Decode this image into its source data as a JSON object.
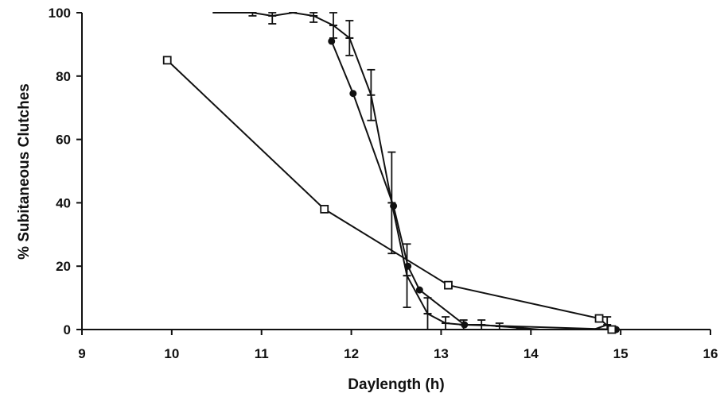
{
  "chart_data": {
    "type": "line",
    "title": "",
    "xlabel": "Daylength (h)",
    "ylabel": "% Subitaneous Clutches",
    "xlim": [
      9,
      16
    ],
    "ylim": [
      0,
      100
    ],
    "xticks": [
      9,
      10,
      11,
      12,
      13,
      14,
      15,
      16
    ],
    "yticks": [
      0,
      20,
      40,
      60,
      80,
      100
    ],
    "grid": false,
    "legend": "none",
    "series": [
      {
        "marker": "tick",
        "color": "#111111",
        "points": [
          {
            "x": 10.5,
            "y": 100
          },
          {
            "x": 10.9,
            "y": 100,
            "err": 1
          },
          {
            "x": 11.12,
            "y": 99,
            "err": 2.5
          },
          {
            "x": 11.35,
            "y": 100
          },
          {
            "x": 11.58,
            "y": 99,
            "err": 2
          },
          {
            "x": 11.8,
            "y": 96,
            "err": 4
          },
          {
            "x": 11.98,
            "y": 92,
            "err": 5.5
          },
          {
            "x": 12.22,
            "y": 74,
            "err": 8
          },
          {
            "x": 12.45,
            "y": 40,
            "err": 16
          },
          {
            "x": 12.62,
            "y": 17,
            "err": 10
          },
          {
            "x": 12.85,
            "y": 5,
            "err": 5
          },
          {
            "x": 13.05,
            "y": 2,
            "err": 2
          },
          {
            "x": 13.25,
            "y": 1.5,
            "err": 1.5
          },
          {
            "x": 13.45,
            "y": 1.5,
            "err": 1.5
          },
          {
            "x": 13.65,
            "y": 1,
            "err": 1
          },
          {
            "x": 13.88,
            "y": 0.5
          },
          {
            "x": 14.1,
            "y": 0
          },
          {
            "x": 14.7,
            "y": 0
          },
          {
            "x": 14.85,
            "y": 1.5,
            "err": 2.5
          },
          {
            "x": 14.95,
            "y": 0
          }
        ]
      },
      {
        "marker": "filled-circle",
        "color": "#111111",
        "points": [
          {
            "x": 11.78,
            "y": 91
          },
          {
            "x": 12.02,
            "y": 74.5
          },
          {
            "x": 12.47,
            "y": 39
          },
          {
            "x": 12.63,
            "y": 20
          },
          {
            "x": 12.76,
            "y": 12.5
          },
          {
            "x": 13.26,
            "y": 1.5
          },
          {
            "x": 14.95,
            "y": 0
          }
        ]
      },
      {
        "marker": "open-square",
        "color": "#111111",
        "points": [
          {
            "x": 9.95,
            "y": 85
          },
          {
            "x": 11.7,
            "y": 38
          },
          {
            "x": 13.08,
            "y": 14
          },
          {
            "x": 14.76,
            "y": 3.5
          },
          {
            "x": 14.9,
            "y": 0
          }
        ]
      }
    ]
  }
}
